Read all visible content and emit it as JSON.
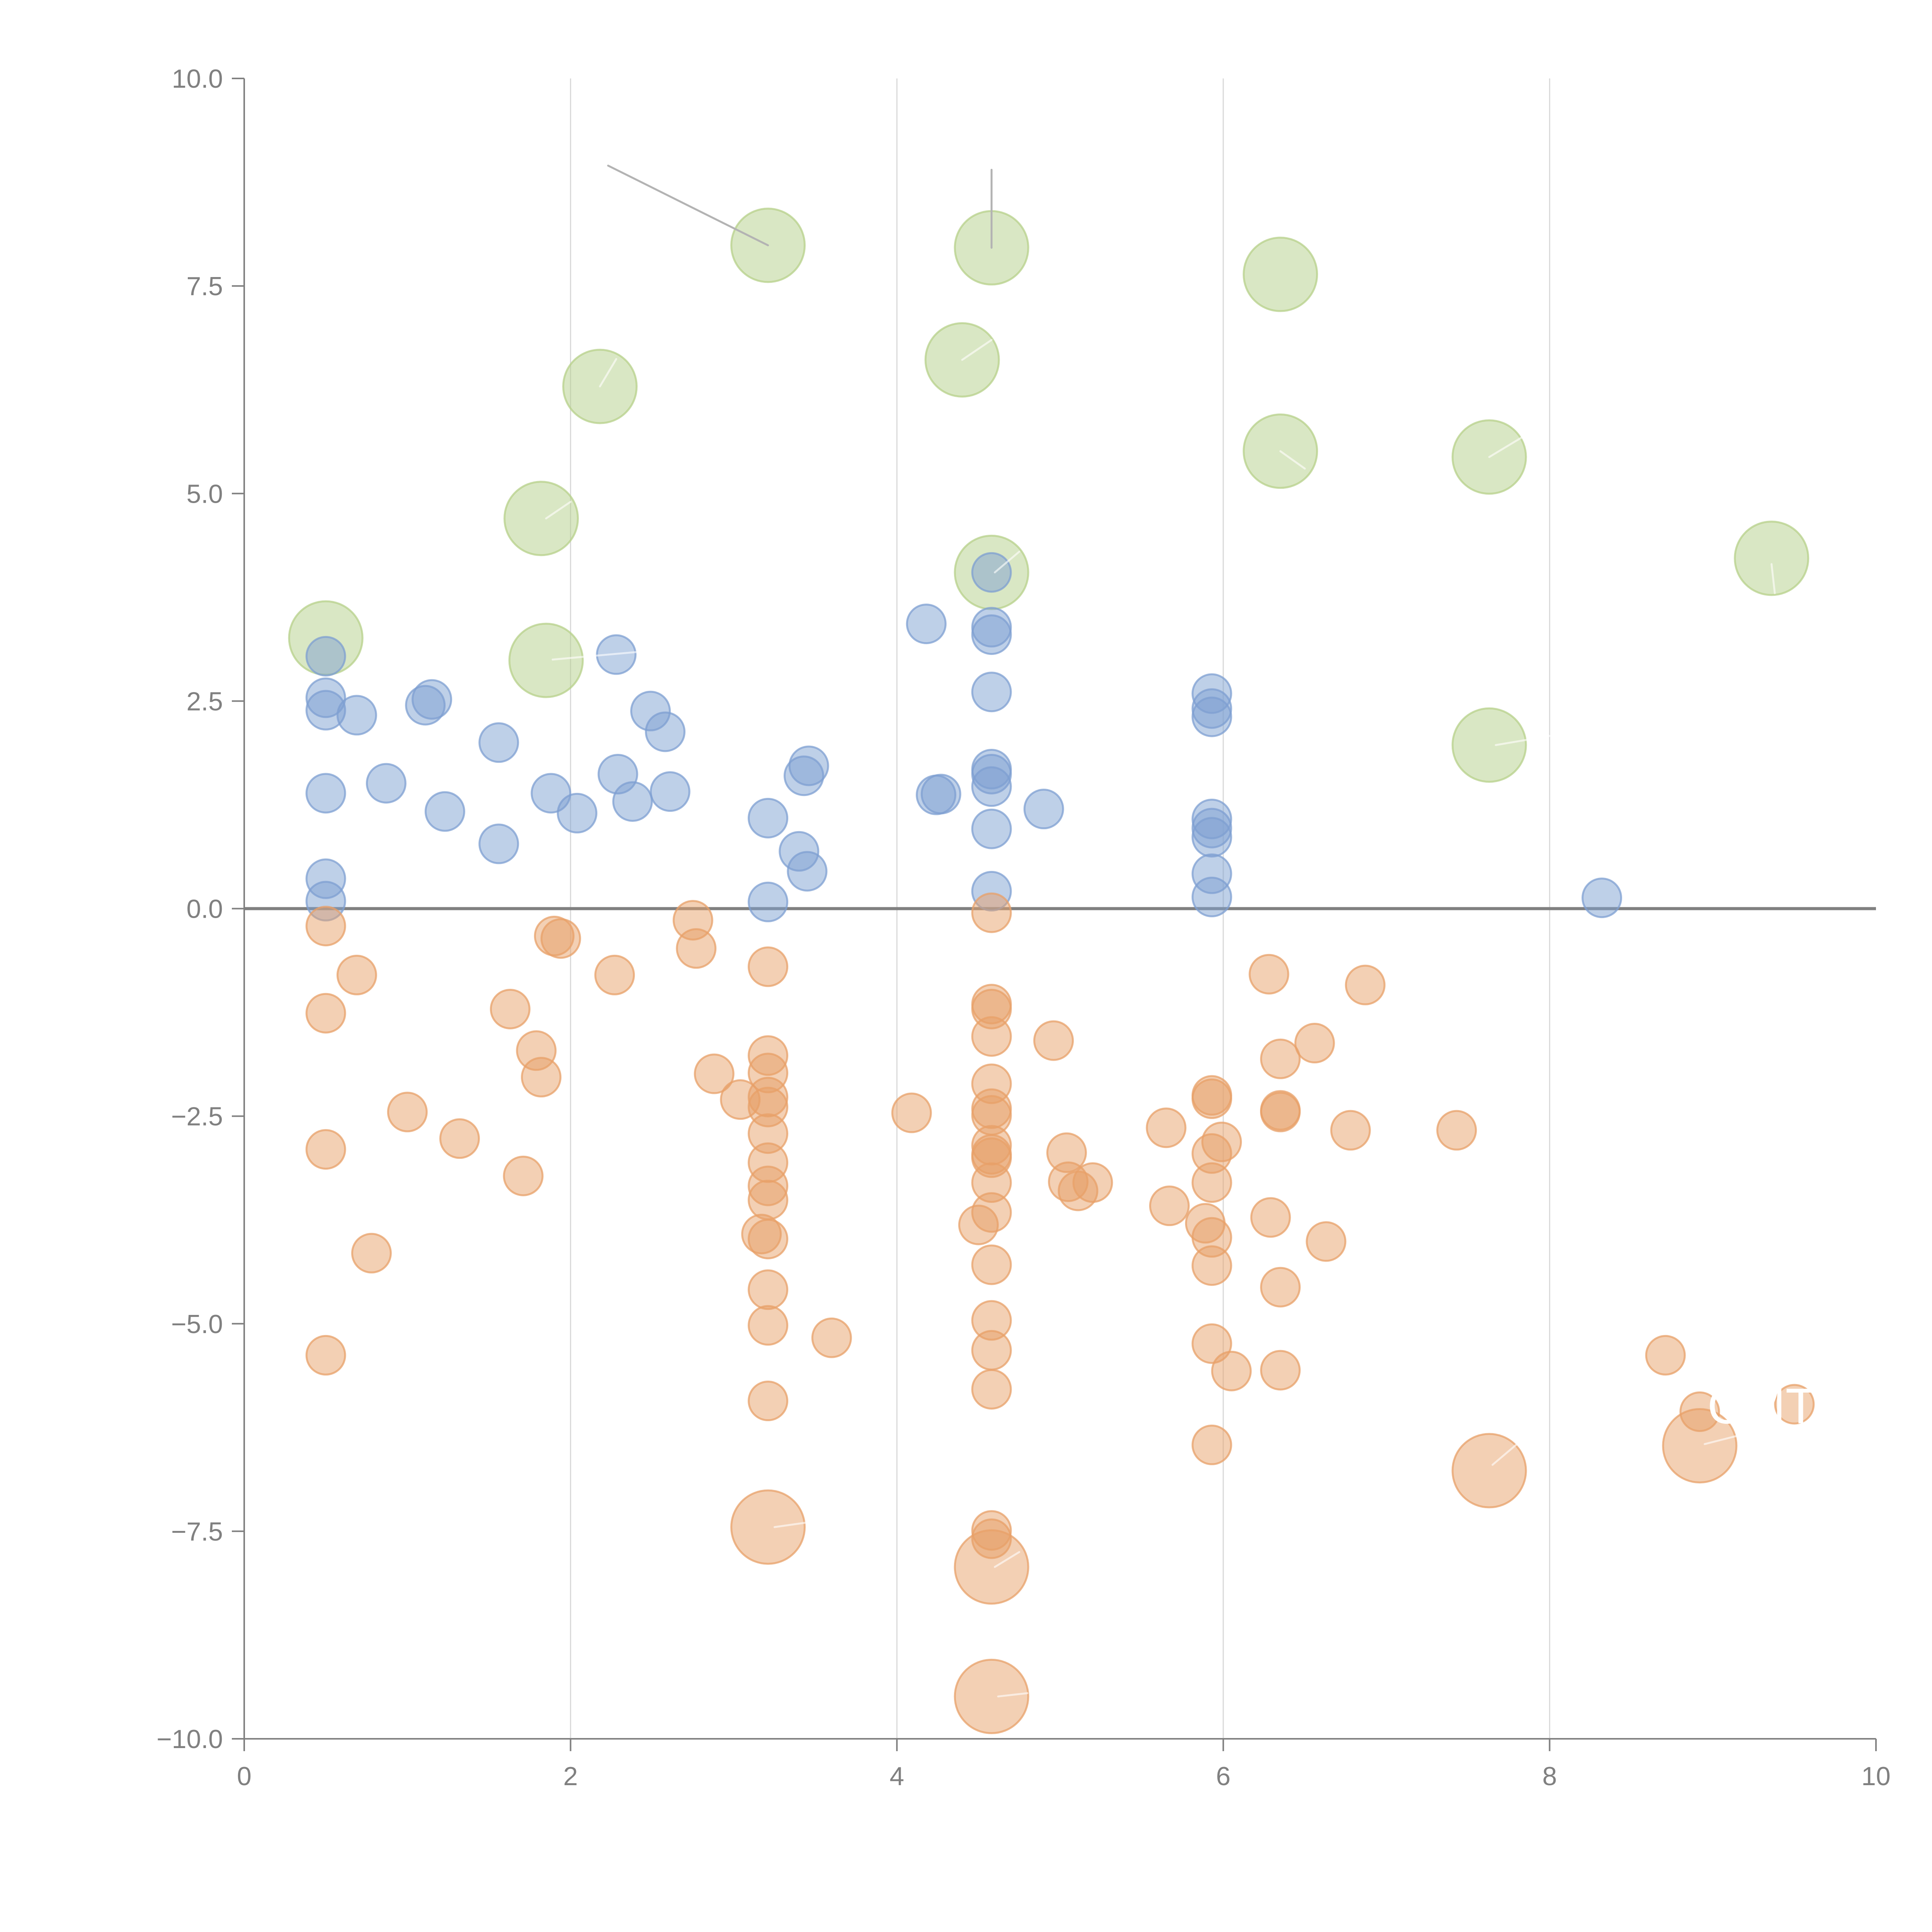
{
  "chart_data": {
    "type": "scatter",
    "title": "",
    "xlabel": "",
    "ylabel": "",
    "xlim": [
      0,
      10
    ],
    "ylim": [
      -10,
      10
    ],
    "x_ticks": [
      "0",
      "2",
      "4",
      "6",
      "8",
      "10"
    ],
    "x_tick_values": [
      0,
      2,
      4,
      6,
      8,
      10
    ],
    "y_ticks": [
      "10.0",
      "7.5",
      "5.0",
      "2.5",
      "0.0",
      "−2.5",
      "−5.0",
      "−7.5",
      "−10.0"
    ],
    "y_tick_values": [
      10,
      7.5,
      5,
      2.5,
      0,
      -2.5,
      -5,
      -7.5,
      -10
    ],
    "grid": "vertical lines at x ticks",
    "reference_line": {
      "axis": "y",
      "value": 0
    },
    "legend": "none",
    "series": [
      {
        "name": "green",
        "color": "#b5d08a",
        "size": "large",
        "points": [
          [
            3.21,
            7.99
          ],
          [
            4.58,
            7.96
          ],
          [
            6.35,
            7.64
          ],
          [
            4.4,
            6.61
          ],
          [
            2.18,
            6.29
          ],
          [
            6.35,
            5.51
          ],
          [
            7.63,
            5.44
          ],
          [
            1.82,
            4.7
          ],
          [
            4.58,
            4.05
          ],
          [
            9.36,
            4.22
          ],
          [
            0.5,
            3.26
          ],
          [
            1.85,
            2.99
          ],
          [
            7.63,
            1.97
          ]
        ]
      },
      {
        "name": "blue",
        "color": "#7d9fd2",
        "size": "small",
        "points": [
          [
            0.5,
            3.04
          ],
          [
            0.5,
            2.54
          ],
          [
            0.5,
            2.39
          ],
          [
            0.69,
            2.33
          ],
          [
            1.11,
            2.45
          ],
          [
            1.15,
            2.52
          ],
          [
            1.56,
            2.0
          ],
          [
            0.87,
            1.51
          ],
          [
            1.23,
            1.17
          ],
          [
            0.5,
            1.39
          ],
          [
            1.56,
            0.78
          ],
          [
            0.5,
            0.36
          ],
          [
            0.5,
            0.09
          ],
          [
            2.28,
            3.06
          ],
          [
            2.49,
            2.38
          ],
          [
            2.58,
            2.13
          ],
          [
            1.88,
            1.39
          ],
          [
            2.04,
            1.15
          ],
          [
            2.29,
            1.62
          ],
          [
            2.38,
            1.29
          ],
          [
            2.61,
            1.41
          ],
          [
            3.21,
            1.09
          ],
          [
            3.4,
            0.69
          ],
          [
            3.45,
            0.45
          ],
          [
            3.21,
            0.08
          ],
          [
            3.46,
            1.72
          ],
          [
            3.43,
            1.6
          ],
          [
            4.18,
            3.43
          ],
          [
            4.58,
            3.39
          ],
          [
            4.58,
            3.3
          ],
          [
            4.58,
            2.61
          ],
          [
            4.58,
            1.68
          ],
          [
            4.58,
            1.62
          ],
          [
            4.58,
            1.47
          ],
          [
            4.27,
            1.38
          ],
          [
            4.24,
            1.37
          ],
          [
            4.9,
            1.2
          ],
          [
            4.58,
            0.96
          ],
          [
            4.58,
            0.21
          ],
          [
            5.93,
            2.59
          ],
          [
            5.93,
            2.41
          ],
          [
            5.93,
            2.31
          ],
          [
            5.93,
            1.08
          ],
          [
            5.93,
            0.97
          ],
          [
            5.93,
            0.86
          ],
          [
            5.93,
            0.42
          ],
          [
            5.93,
            0.14
          ],
          [
            8.32,
            0.13
          ],
          [
            4.58,
            4.05
          ]
        ]
      },
      {
        "name": "orange",
        "color": "#e8a068",
        "size": "small",
        "points": [
          [
            0.5,
            -0.21
          ],
          [
            0.69,
            -0.8
          ],
          [
            0.5,
            -1.26
          ],
          [
            0.5,
            -2.9
          ],
          [
            1.0,
            -2.45
          ],
          [
            1.32,
            -2.77
          ],
          [
            0.78,
            -4.15
          ],
          [
            0.5,
            -5.38
          ],
          [
            1.63,
            -1.21
          ],
          [
            1.79,
            -1.71
          ],
          [
            1.82,
            -2.03
          ],
          [
            1.71,
            -3.22
          ],
          [
            1.9,
            -0.33
          ],
          [
            1.94,
            -0.36
          ],
          [
            2.27,
            -0.8
          ],
          [
            2.75,
            -0.14
          ],
          [
            2.77,
            -0.48
          ],
          [
            2.88,
            -1.99
          ],
          [
            3.04,
            -2.3
          ],
          [
            3.21,
            -0.7
          ],
          [
            3.21,
            -1.77
          ],
          [
            3.21,
            -1.98
          ],
          [
            3.21,
            -2.27
          ],
          [
            3.21,
            -2.39
          ],
          [
            3.21,
            -2.71
          ],
          [
            3.21,
            -3.06
          ],
          [
            3.21,
            -3.34
          ],
          [
            3.21,
            -3.51
          ],
          [
            3.17,
            -3.92
          ],
          [
            3.21,
            -3.98
          ],
          [
            3.21,
            -4.59
          ],
          [
            3.21,
            -5.02
          ],
          [
            3.21,
            -5.93
          ],
          [
            3.6,
            -5.17
          ],
          [
            4.09,
            -2.46
          ],
          [
            4.58,
            -0.05
          ],
          [
            4.58,
            -1.15
          ],
          [
            4.58,
            -1.21
          ],
          [
            4.58,
            -1.54
          ],
          [
            4.58,
            -2.11
          ],
          [
            4.58,
            -2.41
          ],
          [
            4.58,
            -2.49
          ],
          [
            4.58,
            -2.85
          ],
          [
            4.58,
            -2.96
          ],
          [
            4.58,
            -3.0
          ],
          [
            4.58,
            -3.3
          ],
          [
            4.58,
            -3.66
          ],
          [
            4.5,
            -3.81
          ],
          [
            4.58,
            -4.29
          ],
          [
            4.58,
            -4.96
          ],
          [
            4.58,
            -5.32
          ],
          [
            4.58,
            -5.79
          ],
          [
            4.58,
            -7.49
          ],
          [
            4.58,
            -7.59
          ],
          [
            4.96,
            -1.59
          ],
          [
            5.04,
            -2.94
          ],
          [
            5.05,
            -3.29
          ],
          [
            5.11,
            -3.4
          ],
          [
            5.2,
            -3.3
          ],
          [
            5.65,
            -2.64
          ],
          [
            5.67,
            -3.58
          ],
          [
            5.93,
            -2.25
          ],
          [
            5.93,
            -2.29
          ],
          [
            5.99,
            -2.81
          ],
          [
            5.93,
            -2.95
          ],
          [
            5.93,
            -3.3
          ],
          [
            5.89,
            -3.79
          ],
          [
            5.93,
            -3.96
          ],
          [
            5.93,
            -4.3
          ],
          [
            5.93,
            -5.24
          ],
          [
            6.05,
            -5.57
          ],
          [
            5.93,
            -6.46
          ],
          [
            6.28,
            -0.79
          ],
          [
            6.35,
            -1.81
          ],
          [
            6.35,
            -2.43
          ],
          [
            6.35,
            -2.45
          ],
          [
            6.29,
            -3.72
          ],
          [
            6.35,
            -4.56
          ],
          [
            6.35,
            -5.56
          ],
          [
            6.56,
            -1.62
          ],
          [
            6.63,
            -4.01
          ],
          [
            6.78,
            -2.67
          ],
          [
            6.87,
            -0.92
          ],
          [
            7.43,
            -2.67
          ],
          [
            8.71,
            -5.38
          ],
          [
            8.92,
            -6.06
          ],
          [
            9.5,
            -5.97
          ]
        ]
      },
      {
        "name": "orange-large",
        "color": "#e8a068",
        "size": "large",
        "points": [
          [
            3.21,
            -7.45
          ],
          [
            4.58,
            -7.93
          ],
          [
            4.58,
            -9.49
          ],
          [
            7.63,
            -6.77
          ],
          [
            8.92,
            -6.47
          ]
        ]
      }
    ],
    "annotations": [
      {
        "text": "CMT",
        "color": "#ffffff",
        "anchor": [
          8.92,
          -6.47
        ],
        "label_at": [
          9.3,
          -6.2
        ]
      }
    ],
    "leader_lines": [
      {
        "color": "#b3b3b3",
        "from": [
          3.21,
          7.99
        ],
        "to": [
          2.23,
          8.95
        ]
      },
      {
        "color": "#b3b3b3",
        "from": [
          4.58,
          7.96
        ],
        "to": [
          4.58,
          8.9
        ]
      },
      {
        "color": "#ffffff",
        "from": [
          4.4,
          6.61
        ],
        "to": [
          4.58,
          6.85
        ]
      },
      {
        "color": "#ffffff",
        "from": [
          2.18,
          6.29
        ],
        "to": [
          2.28,
          6.62
        ]
      },
      {
        "color": "#ffffff",
        "from": [
          6.35,
          5.51
        ],
        "to": [
          6.5,
          5.3
        ]
      },
      {
        "color": "#ffffff",
        "from": [
          7.63,
          5.44
        ],
        "to": [
          7.85,
          5.7
        ]
      },
      {
        "color": "#ffffff",
        "from": [
          1.85,
          4.7
        ],
        "to": [
          2.0,
          4.9
        ]
      },
      {
        "color": "#ffffff",
        "from": [
          4.6,
          4.05
        ],
        "to": [
          4.75,
          4.3
        ]
      },
      {
        "color": "#ffffff",
        "from": [
          9.36,
          4.15
        ],
        "to": [
          9.38,
          3.8
        ]
      },
      {
        "color": "#ffffff",
        "from": [
          1.89,
          3.0
        ],
        "to": [
          2.4,
          3.09
        ]
      },
      {
        "color": "#ffffff",
        "from": [
          7.67,
          1.97
        ],
        "to": [
          8.0,
          2.08
        ]
      },
      {
        "color": "#ffffff",
        "from": [
          3.25,
          -7.45
        ],
        "to": [
          3.5,
          -7.38
        ]
      },
      {
        "color": "#ffffff",
        "from": [
          4.6,
          -7.93
        ],
        "to": [
          4.75,
          -7.75
        ]
      },
      {
        "color": "#ffffff",
        "from": [
          4.62,
          -9.49
        ],
        "to": [
          4.8,
          -9.45
        ]
      },
      {
        "color": "#ffffff",
        "from": [
          7.65,
          -6.7
        ],
        "to": [
          7.8,
          -6.45
        ]
      },
      {
        "color": "#ffffff",
        "from": [
          8.95,
          -6.45
        ],
        "to": [
          9.15,
          -6.35
        ]
      }
    ]
  }
}
